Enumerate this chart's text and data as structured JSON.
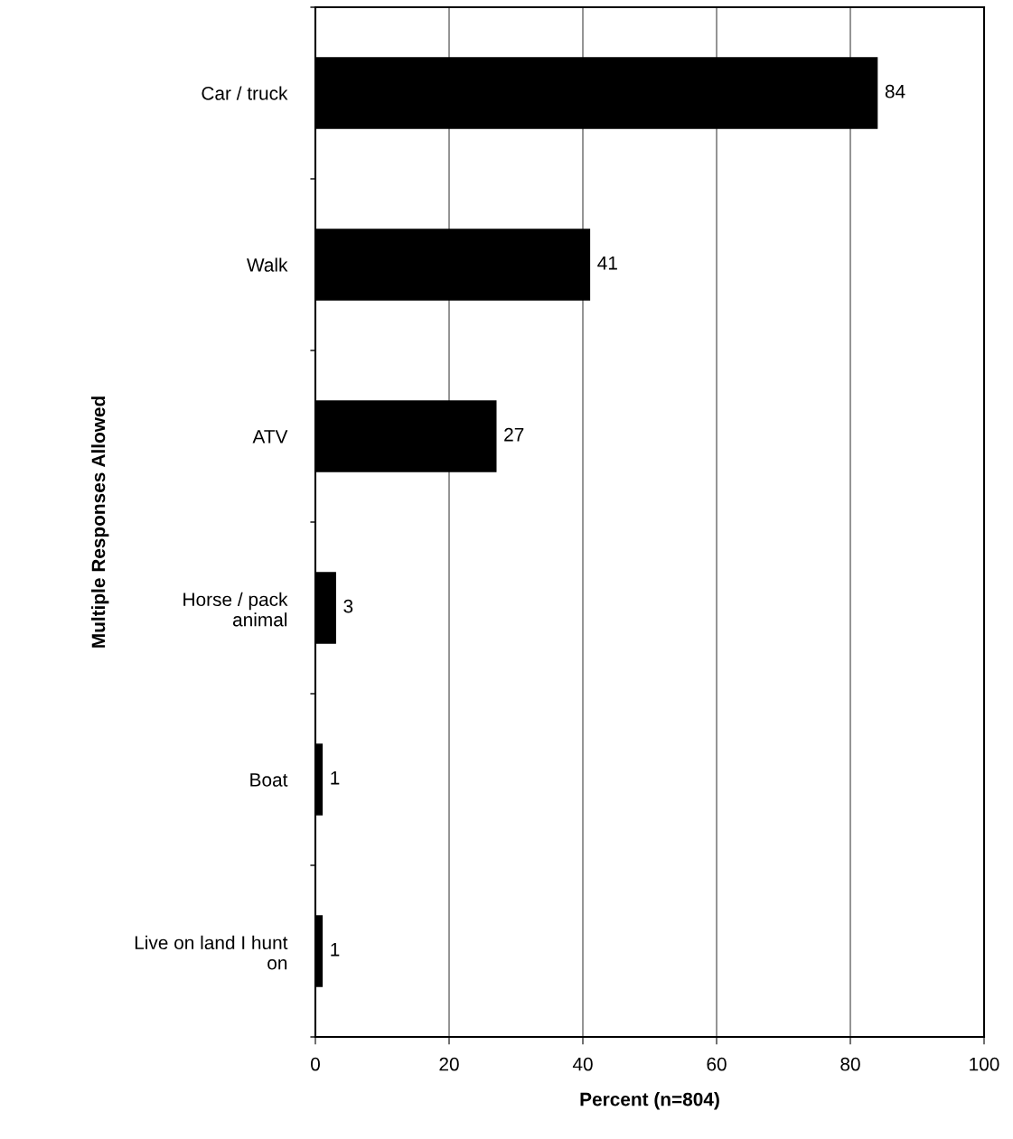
{
  "chart_data": {
    "type": "bar",
    "orientation": "horizontal",
    "xlabel": "Percent (n=804)",
    "ylabel": "Multiple Responses Allowed",
    "categories": [
      "Car / truck",
      "Walk",
      "ATV",
      "Horse / pack\nanimal",
      "Boat",
      "Live on land I hunt\non"
    ],
    "values": [
      84,
      41,
      27,
      3,
      1,
      1
    ],
    "color": "#000000",
    "xlim": [
      0,
      100
    ],
    "xticks": [
      0,
      20,
      40,
      60,
      80,
      100
    ],
    "grid": "x",
    "data_labels": true
  }
}
